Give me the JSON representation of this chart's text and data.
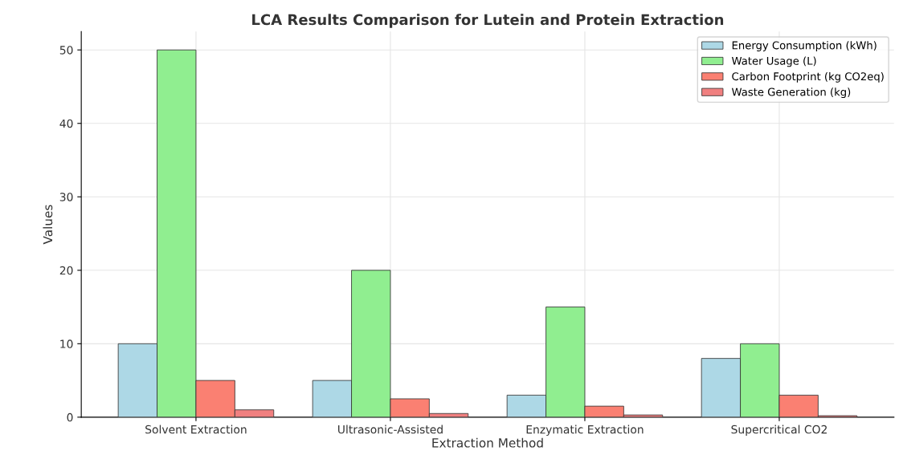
{
  "chart_data": {
    "type": "bar",
    "title": "LCA Results Comparison for Lutein and Protein Extraction",
    "xlabel": "Extraction Method",
    "ylabel": "Values",
    "categories": [
      "Solvent Extraction",
      "Ultrasonic-Assisted",
      "Enzymatic Extraction",
      "Supercritical CO2"
    ],
    "series": [
      {
        "name": "Energy Consumption (kWh)",
        "color": "#add8e6",
        "values": [
          10,
          5,
          3,
          8
        ]
      },
      {
        "name": "Water Usage (L)",
        "color": "#90ee90",
        "values": [
          50,
          20,
          15,
          10
        ]
      },
      {
        "name": "Carbon Footprint (kg CO2eq)",
        "color": "#fa8072",
        "values": [
          5,
          2.5,
          1.5,
          3
        ]
      },
      {
        "name": "Waste Generation (kg)",
        "color": "#f08080",
        "values": [
          1,
          0.5,
          0.3,
          0.2
        ]
      }
    ],
    "ylim": [
      0,
      52.5
    ],
    "yticks": [
      0,
      10,
      20,
      30,
      40,
      50
    ],
    "grid": true,
    "legend": "top right"
  }
}
